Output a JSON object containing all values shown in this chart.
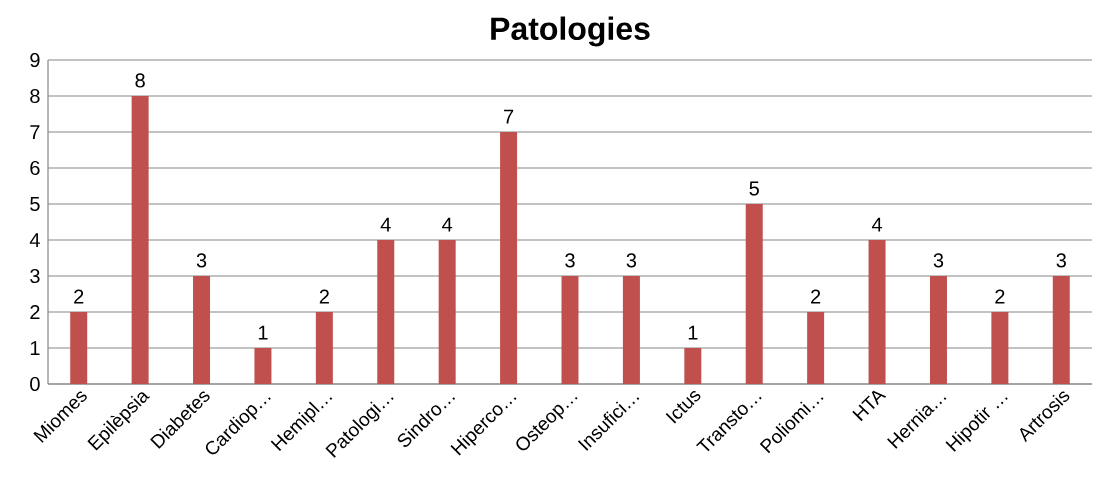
{
  "chart_data": {
    "type": "bar",
    "title": "Patologies",
    "categories": [
      "Miomes",
      "Epilèpsia",
      "Diabetes",
      "Cardiop…",
      "Hemipl…",
      "Patologi…",
      "Sindro…",
      "Hiperco…",
      "Osteop…",
      "Insufici…",
      "Ictus",
      "Transto…",
      "Poliomi…",
      "HTA",
      "Hernia…",
      "Hipotir …",
      "Artrosis"
    ],
    "values": [
      2,
      8,
      3,
      1,
      2,
      4,
      4,
      7,
      3,
      3,
      1,
      5,
      2,
      4,
      3,
      2,
      3
    ],
    "color": "#c0504d",
    "ylim": [
      0,
      9
    ],
    "yticks": [
      0,
      1,
      2,
      3,
      4,
      5,
      6,
      7,
      8,
      9
    ],
    "grid": "y",
    "data_labels": true
  }
}
